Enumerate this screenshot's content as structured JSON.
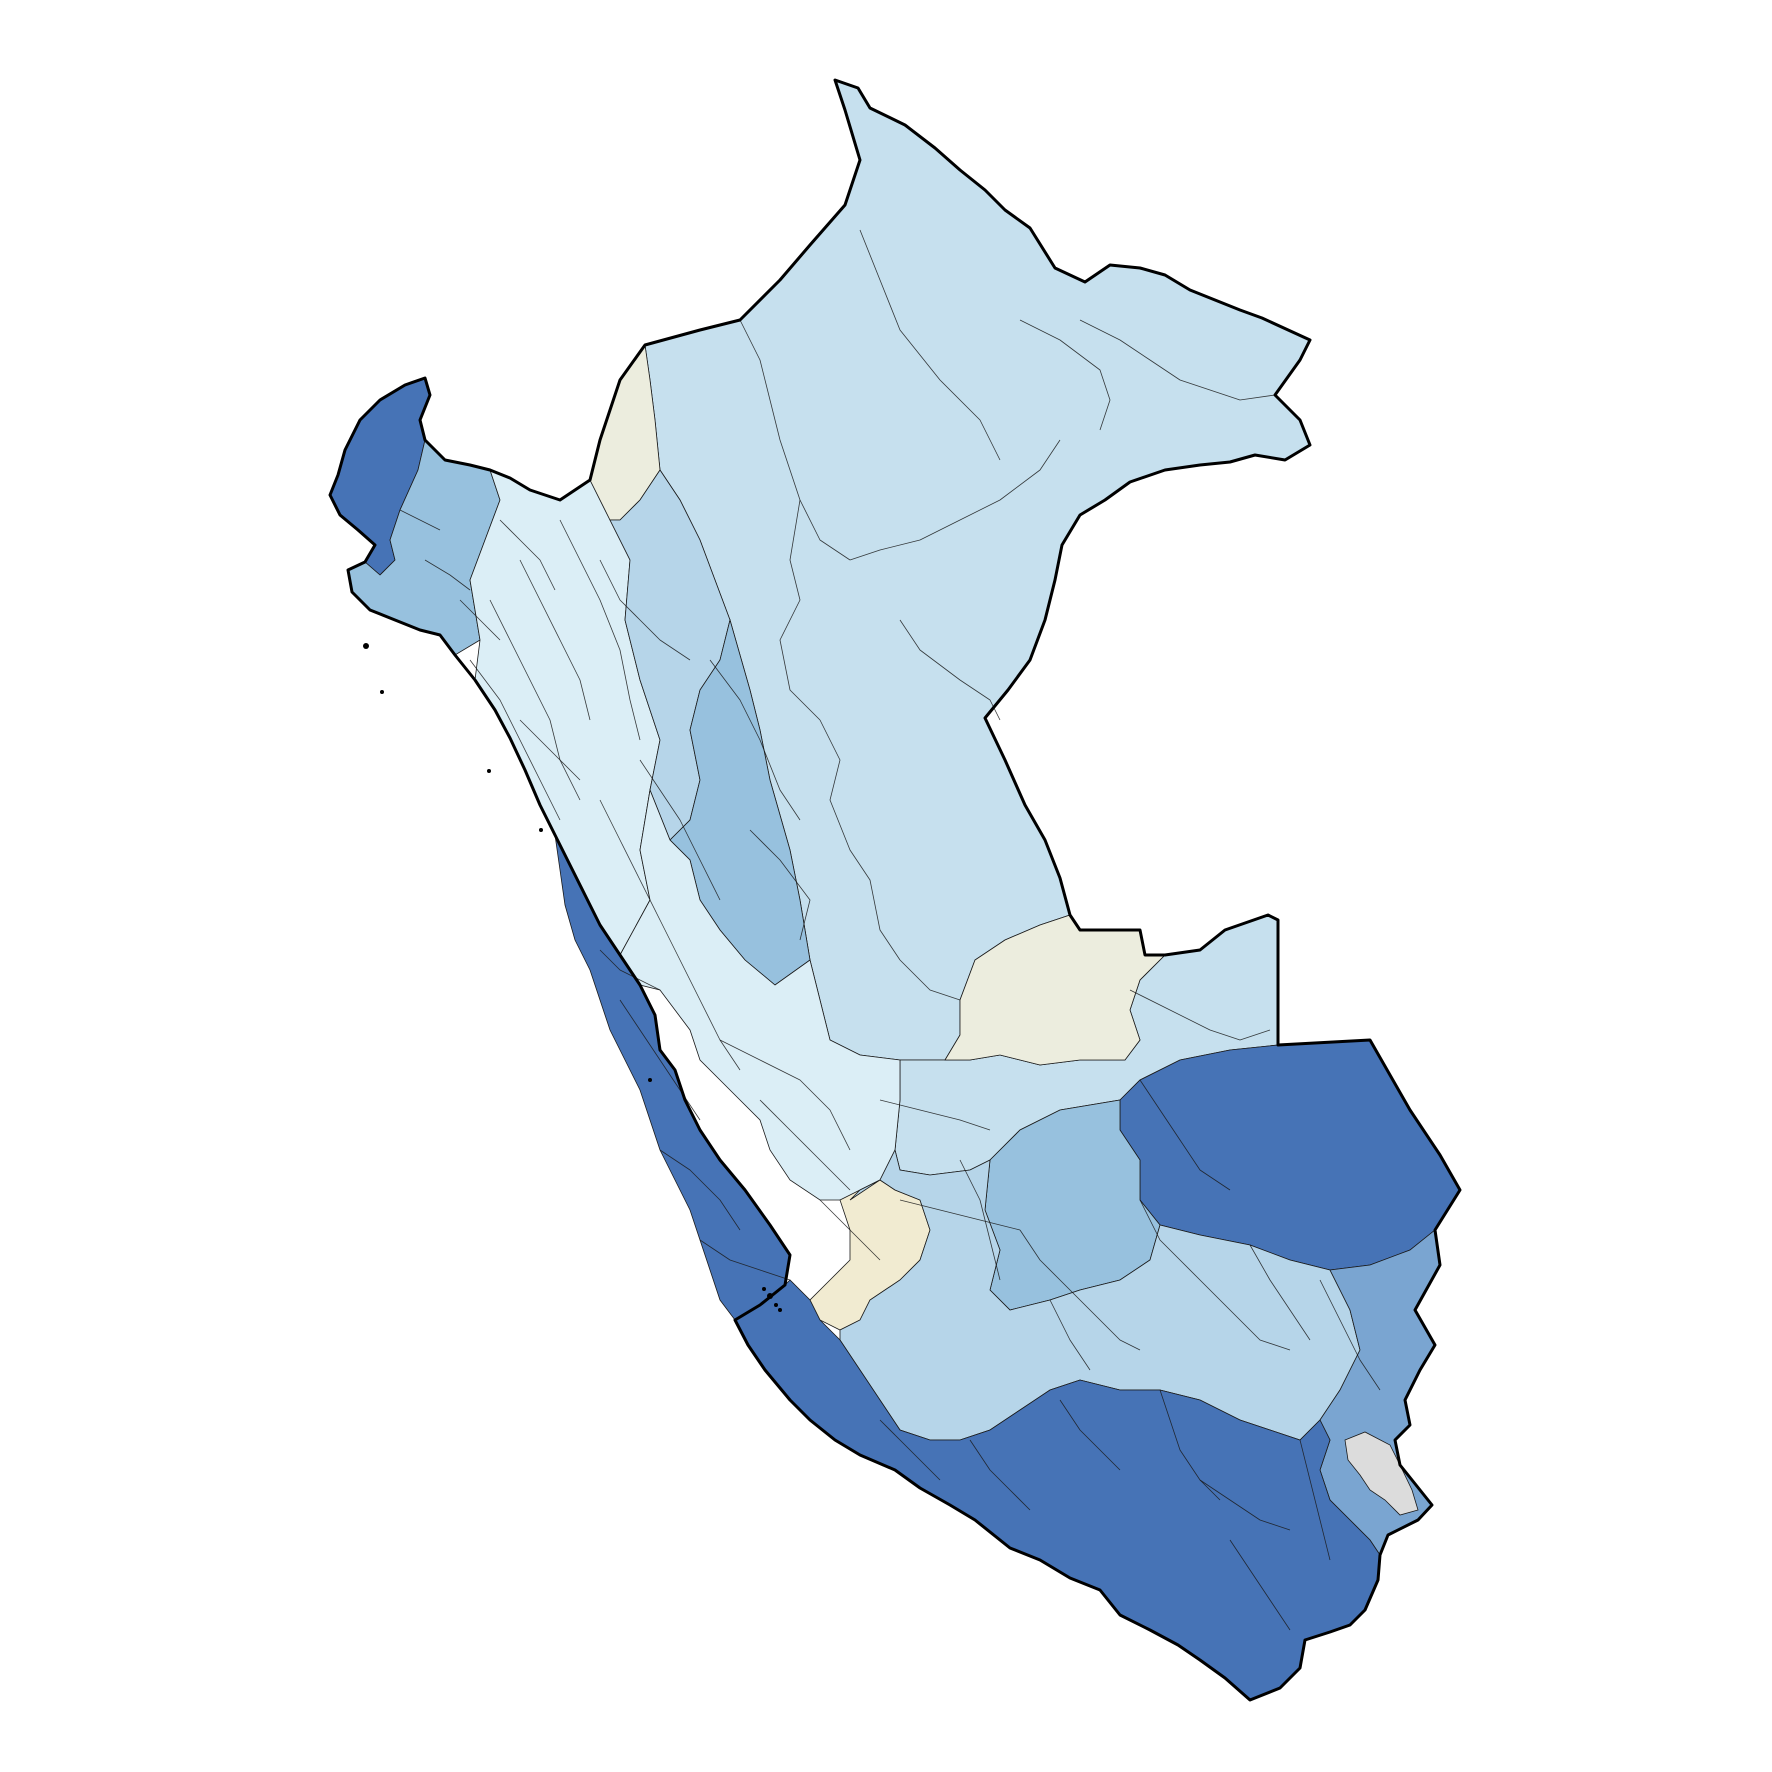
{
  "map": {
    "country": "Peru",
    "subdivision_level": "provinces",
    "background_color": "#ffffff",
    "palette": {
      "deepest": "#4673b6",
      "dark": "#5f8fc4",
      "mid_dark": "#7aa5d1",
      "mid": "#97c1de",
      "mid_light": "#b6d5e9",
      "light": "#c6e0ee",
      "pale": "#dbeef6",
      "palest": "#e8f4f6",
      "neutral_cream": "#ecedde",
      "cream": "#f1ebd1",
      "no_data_grey": "#dcdcdc"
    },
    "regions": [
      {
        "id": "amazon-north",
        "color_class": "light"
      },
      {
        "id": "northern-coast",
        "color_class": "deepest"
      },
      {
        "id": "tumbes-piura-inland",
        "color_class": "mid"
      },
      {
        "id": "northern-highlands",
        "color_class": "pale"
      },
      {
        "id": "amazonas-cream-strip",
        "color_class": "neutral_cream"
      },
      {
        "id": "amazonas-cajamarca",
        "color_class": "mid_light"
      },
      {
        "id": "san-martin",
        "color_class": "mid"
      },
      {
        "id": "ucayali-north",
        "color_class": "light"
      },
      {
        "id": "central-highlands",
        "color_class": "pale"
      },
      {
        "id": "central-coast",
        "color_class": "deepest"
      },
      {
        "id": "ucayali-cream",
        "color_class": "neutral_cream"
      },
      {
        "id": "madre-de-dios",
        "color_class": "deepest"
      },
      {
        "id": "cusco-east",
        "color_class": "mid"
      },
      {
        "id": "ayacucho-cream",
        "color_class": "cream"
      },
      {
        "id": "southern-highlands",
        "color_class": "mid_light"
      },
      {
        "id": "puno-east",
        "color_class": "mid_dark"
      },
      {
        "id": "southern-coast",
        "color_class": "deepest"
      },
      {
        "id": "titicaca",
        "color_class": "no_data_grey"
      }
    ]
  }
}
